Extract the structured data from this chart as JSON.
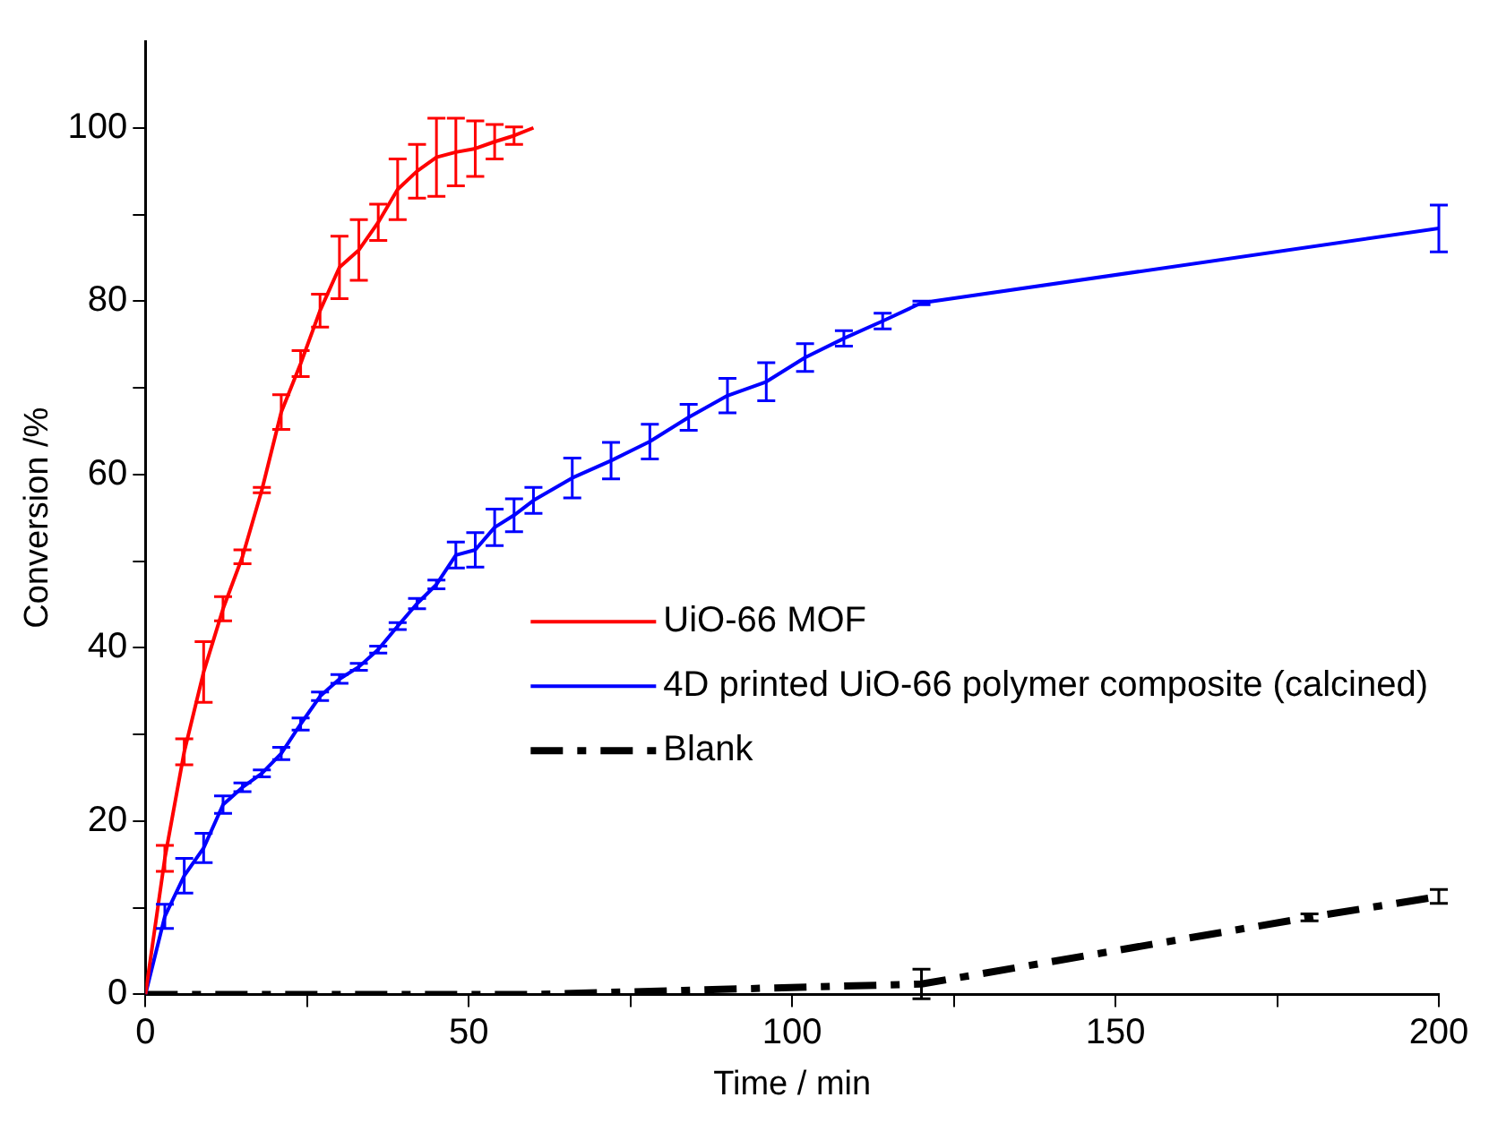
{
  "chart_data": {
    "type": "line",
    "xlabel": "Time / min",
    "ylabel": "Conversion /%",
    "xlim": [
      0,
      200
    ],
    "ylim": [
      0,
      110
    ],
    "xticks": [
      0,
      {
        "value": 25,
        "label": null
      },
      50,
      {
        "value": 75,
        "label": null
      },
      100,
      {
        "value": 125,
        "label": null
      },
      150,
      {
        "value": 175,
        "label": null
      },
      200
    ],
    "yticks": [
      0,
      {
        "value": 10,
        "label": null
      },
      20,
      {
        "value": 30,
        "label": null
      },
      40,
      {
        "value": 50,
        "label": null
      },
      60,
      {
        "value": 70,
        "label": null
      },
      80,
      {
        "value": 90,
        "label": null
      },
      100
    ],
    "legend": "right",
    "marker": "none",
    "grid": false,
    "series": [
      {
        "name": "UiO-66 MOF",
        "color": "#ff0000",
        "line_style": "solid",
        "x": [
          0,
          3,
          6,
          9,
          12,
          15,
          18,
          21,
          24,
          27,
          30,
          33,
          36,
          39,
          42,
          45,
          48,
          51,
          54,
          57,
          60
        ],
        "values": [
          0,
          15.7,
          28,
          37.2,
          44.5,
          50.5,
          58.2,
          67.2,
          72.8,
          78.9,
          83.9,
          85.9,
          89.1,
          92.9,
          95,
          96.6,
          97.2,
          97.6,
          98.4,
          99.1,
          100
        ],
        "errors": [
          null,
          1.5,
          1.5,
          3.5,
          1.4,
          0.8,
          0.3,
          2,
          1.5,
          1.9,
          3.6,
          3.5,
          2.1,
          3.5,
          3.1,
          4.5,
          3.9,
          3.2,
          2,
          1,
          null
        ]
      },
      {
        "name": "4D printed UiO-66 polymer composite (calcined)",
        "color": "#0000ff",
        "line_style": "solid",
        "x": [
          0,
          3,
          6,
          9,
          12,
          15,
          18,
          21,
          24,
          27,
          30,
          33,
          36,
          39,
          42,
          45,
          48,
          51,
          54,
          57,
          60,
          66,
          72,
          78,
          84,
          90,
          96,
          102,
          108,
          114,
          120,
          200
        ],
        "values": [
          0,
          9,
          13.7,
          16.9,
          21.9,
          23.9,
          25.5,
          27.8,
          31.2,
          34.4,
          36.4,
          37.8,
          39.8,
          42.5,
          45.1,
          47.3,
          50.7,
          51.3,
          53.9,
          55.3,
          57,
          59.6,
          61.6,
          63.8,
          66.6,
          69.1,
          70.7,
          73.5,
          75.7,
          77.7,
          79.8,
          88.4
        ],
        "errors": [
          null,
          1.4,
          2,
          1.7,
          1,
          0.5,
          0.4,
          0.7,
          0.7,
          0.5,
          0.5,
          0.4,
          0.4,
          0.4,
          0.6,
          0.5,
          1.5,
          2,
          2.1,
          1.9,
          1.5,
          2.3,
          2.1,
          2,
          1.5,
          2,
          2.2,
          1.6,
          0.9,
          0.9,
          0.2,
          2.7
        ]
      },
      {
        "name": "Blank",
        "color": "#000000",
        "line_style": "dashed",
        "x": [
          0,
          60,
          120,
          180,
          200
        ],
        "values": [
          0,
          0,
          1.2,
          8.9,
          11.3
        ],
        "errors": [
          null,
          null,
          1.7,
          0.4,
          0.8
        ]
      }
    ]
  }
}
